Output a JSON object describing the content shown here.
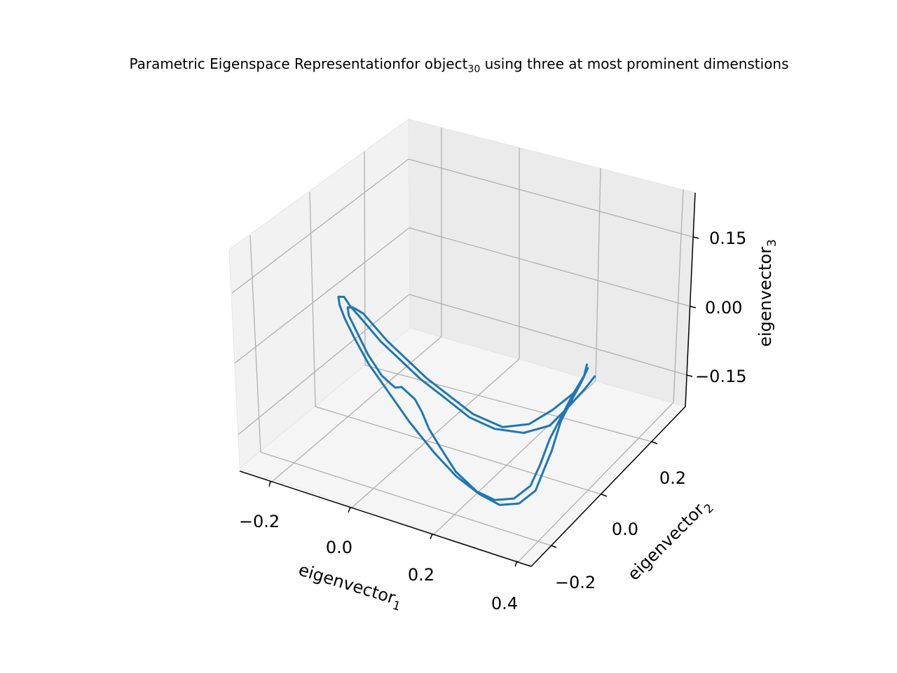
{
  "chart_data": {
    "type": "line",
    "projection": "3d",
    "title": {
      "main": "Parametric Eigenspace Representationfor object",
      "subscript": "30",
      "rest": " using three at most prominent dimenstions"
    },
    "xlabel": {
      "base": "eigenvector",
      "subscript": "1"
    },
    "ylabel": {
      "base": "eigenvector",
      "subscript": "2"
    },
    "zlabel": {
      "base": "eigenvector",
      "subscript": "3"
    },
    "x_ticks": [
      "−0.2",
      "0.0",
      "0.2",
      "0.4"
    ],
    "y_ticks": [
      "−0.2",
      "0.0",
      "0.2"
    ],
    "z_ticks": [
      "−0.15",
      "0.00",
      "0.15"
    ],
    "grid": true,
    "series_color": "#1f77b4",
    "pane_colors": {
      "left": "#f2f2f2",
      "back": "#ebebeb",
      "floor": "#f5f5f5",
      "grid": "#b0b0b0"
    },
    "series": [
      {
        "points": [
          [
            0.45,
            0.1,
            0.18
          ],
          [
            0.42,
            0.08,
            0.15
          ],
          [
            0.38,
            0.05,
            0.12
          ],
          [
            0.33,
            0.02,
            0.07
          ],
          [
            0.28,
            -0.02,
            0.01
          ],
          [
            0.24,
            -0.05,
            -0.03
          ],
          [
            0.2,
            -0.08,
            -0.07
          ],
          [
            0.14,
            -0.11,
            -0.1
          ],
          [
            0.08,
            -0.13,
            -0.11
          ],
          [
            0.03,
            -0.13,
            -0.1
          ],
          [
            -0.02,
            -0.12,
            -0.08
          ],
          [
            -0.06,
            -0.1,
            -0.05
          ],
          [
            -0.1,
            -0.07,
            -0.01
          ],
          [
            -0.13,
            -0.04,
            0.03
          ],
          [
            -0.16,
            -0.01,
            0.07
          ],
          [
            -0.18,
            0.01,
            0.11
          ],
          [
            -0.19,
            0.03,
            0.14
          ],
          [
            -0.19,
            0.05,
            0.16
          ],
          [
            -0.18,
            0.07,
            0.17
          ],
          [
            -0.16,
            0.08,
            0.17
          ],
          [
            -0.14,
            0.09,
            0.15
          ],
          [
            -0.1,
            0.11,
            0.12
          ],
          [
            -0.05,
            0.12,
            0.08
          ],
          [
            0.0,
            0.13,
            0.05
          ],
          [
            0.05,
            0.13,
            0.02
          ],
          [
            0.1,
            0.12,
            0.0
          ],
          [
            0.15,
            0.1,
            -0.02
          ],
          [
            0.2,
            0.08,
            -0.02
          ],
          [
            0.26,
            0.06,
            0.0
          ],
          [
            0.32,
            0.05,
            0.04
          ],
          [
            0.38,
            0.06,
            0.1
          ],
          [
            0.43,
            0.08,
            0.14
          ],
          [
            0.46,
            0.09,
            0.17
          ]
        ]
      },
      {
        "points": [
          [
            0.46,
            0.12,
            0.18
          ],
          [
            0.44,
            0.1,
            0.16
          ],
          [
            0.4,
            0.08,
            0.12
          ],
          [
            0.35,
            0.05,
            0.07
          ],
          [
            0.3,
            0.02,
            0.02
          ],
          [
            0.25,
            -0.02,
            -0.03
          ],
          [
            0.2,
            -0.06,
            -0.07
          ],
          [
            0.14,
            -0.09,
            -0.1
          ],
          [
            0.08,
            -0.11,
            -0.11
          ],
          [
            0.03,
            -0.12,
            -0.1
          ],
          [
            -0.02,
            -0.12,
            -0.07
          ],
          [
            -0.05,
            -0.11,
            -0.03
          ],
          [
            -0.07,
            -0.1,
            0.0
          ],
          [
            -0.08,
            -0.09,
            0.03
          ],
          [
            -0.09,
            -0.08,
            0.05
          ],
          [
            -0.11,
            -0.06,
            0.06
          ],
          [
            -0.12,
            -0.05,
            0.05
          ],
          [
            -0.14,
            -0.03,
            0.06
          ],
          [
            -0.16,
            -0.01,
            0.09
          ],
          [
            -0.17,
            0.01,
            0.12
          ],
          [
            -0.18,
            0.03,
            0.15
          ],
          [
            -0.17,
            0.05,
            0.16
          ],
          [
            -0.15,
            0.06,
            0.16
          ],
          [
            -0.12,
            0.07,
            0.15
          ],
          [
            -0.08,
            0.09,
            0.12
          ],
          [
            -0.04,
            0.11,
            0.09
          ],
          [
            0.01,
            0.12,
            0.06
          ],
          [
            0.06,
            0.12,
            0.03
          ],
          [
            0.11,
            0.11,
            0.01
          ],
          [
            0.16,
            0.1,
            -0.01
          ],
          [
            0.22,
            0.08,
            -0.01
          ],
          [
            0.28,
            0.07,
            0.02
          ],
          [
            0.34,
            0.07,
            0.07
          ],
          [
            0.4,
            0.08,
            0.12
          ],
          [
            0.44,
            0.1,
            0.16
          ]
        ]
      }
    ]
  }
}
